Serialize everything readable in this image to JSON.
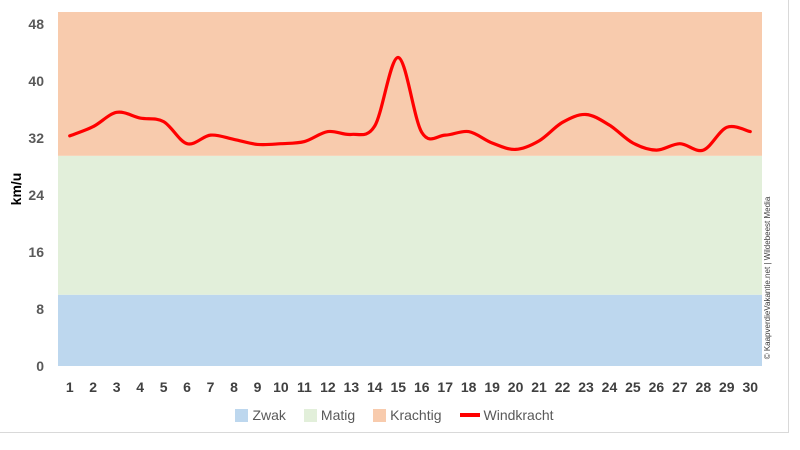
{
  "chart_data": {
    "type": "line",
    "title": "",
    "xlabel": "",
    "ylabel": "km/u",
    "ylim": [
      0,
      48
    ],
    "yticks": [
      0,
      8,
      16,
      24,
      32,
      40,
      48
    ],
    "x": [
      1,
      2,
      3,
      4,
      5,
      6,
      7,
      8,
      9,
      10,
      11,
      12,
      13,
      14,
      15,
      16,
      17,
      18,
      19,
      20,
      21,
      22,
      23,
      24,
      25,
      26,
      27,
      28,
      29,
      30
    ],
    "bands": [
      {
        "name": "Zwak",
        "from": 0,
        "to": 10,
        "color": "#bdd7ee"
      },
      {
        "name": "Matig",
        "from": 10,
        "to": 29.5,
        "color": "#e2efda"
      },
      {
        "name": "Krachtig",
        "from": 29.5,
        "to": 50,
        "color": "#f8cbad"
      }
    ],
    "series": [
      {
        "name": "Windkracht",
        "color": "#ff0000",
        "values": [
          32.3,
          33.6,
          35.6,
          34.8,
          34.3,
          31.2,
          32.4,
          31.8,
          31.1,
          31.2,
          31.5,
          32.9,
          32.5,
          33.7,
          43.3,
          32.8,
          32.4,
          32.9,
          31.3,
          30.4,
          31.6,
          34.2,
          35.3,
          33.8,
          31.3,
          30.3,
          31.2,
          30.3,
          33.5,
          32.9
        ]
      }
    ],
    "legend": [
      "Zwak",
      "Matig",
      "Krachtig",
      "Windkracht"
    ],
    "legend_position": "bottom",
    "credit": "© KaapverdieVakantie.net | Wildebeest Media"
  }
}
